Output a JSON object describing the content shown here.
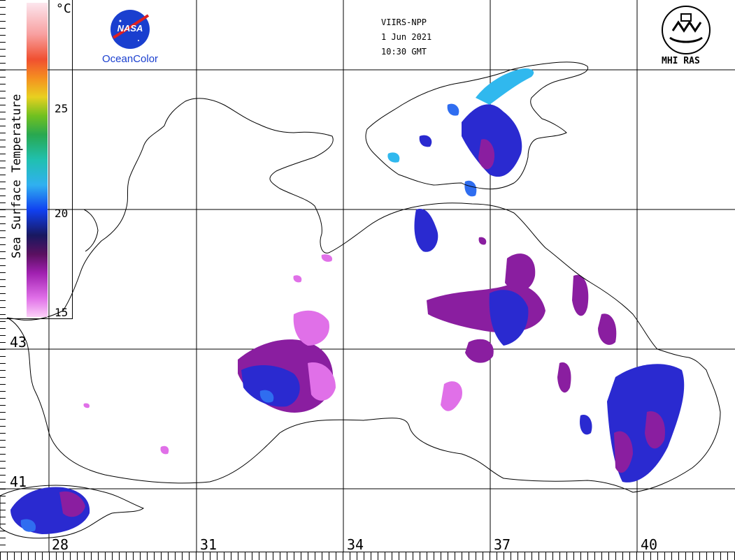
{
  "header": {
    "sensor": "VIIRS-NPP",
    "date": "1 Jun 2021",
    "time": "10:30 GMT"
  },
  "logos": {
    "left_caption": "OceanColor",
    "left_logo_text": "NASA",
    "right_caption": "MHI RAS"
  },
  "legend": {
    "title": "Sea Surface Temperature",
    "unit": "°C",
    "ticks": [
      "25",
      "20",
      "15"
    ],
    "min": 15,
    "max": 29
  },
  "axes": {
    "longitudes": [
      "28",
      "31",
      "34",
      "37",
      "40"
    ],
    "latitudes": [
      "43",
      "41"
    ]
  },
  "colors": {
    "coastline": "#000000",
    "grid": "#000000",
    "cold": "#e070e8",
    "mid": "#8a1ea0",
    "warm": "#2a2ad0",
    "warmer": "#2f6df0",
    "cyan": "#30b8ee"
  }
}
